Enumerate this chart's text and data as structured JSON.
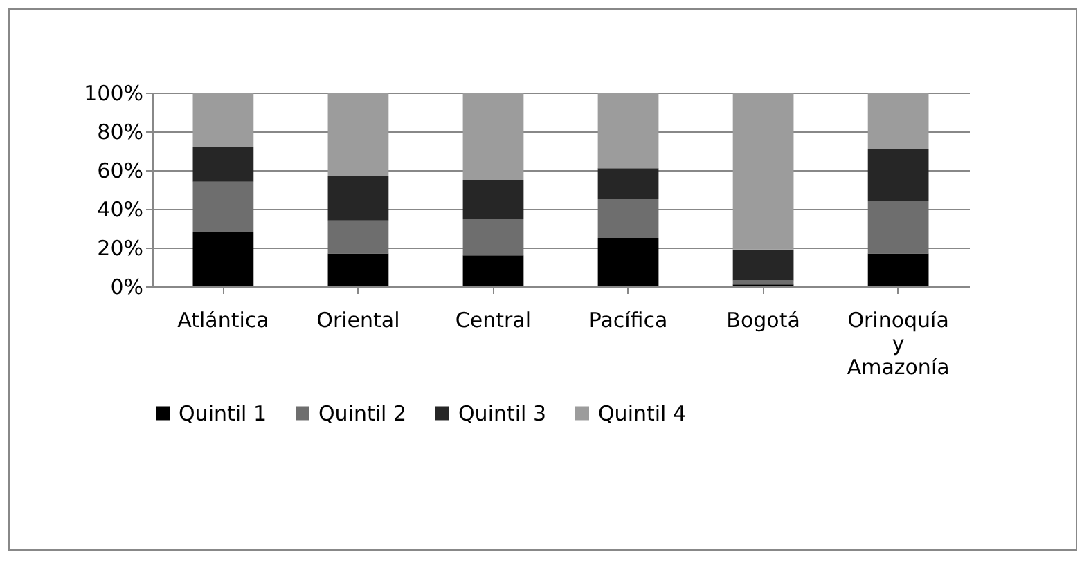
{
  "chart_data": {
    "type": "bar",
    "stacked": true,
    "categories": [
      "Atlántica",
      "Oriental",
      "Central",
      "Pacífica",
      "Bogotá",
      "Orinoquía y Amazonía"
    ],
    "series": [
      {
        "name": "Quintil 1",
        "color": "#000000",
        "values": [
          28,
          17,
          16,
          25,
          1,
          17
        ]
      },
      {
        "name": "Quintil 2",
        "color": "#6e6e6e",
        "values": [
          26,
          17,
          19,
          20,
          2,
          27
        ]
      },
      {
        "name": "Quintil 3",
        "color": "#262626",
        "values": [
          18,
          23,
          20,
          16,
          16,
          27
        ]
      },
      {
        "name": "Quintil 4",
        "color": "#9c9c9c",
        "values": [
          28,
          43,
          45,
          39,
          81,
          29
        ]
      }
    ],
    "ylim": [
      0,
      100
    ],
    "yticks": [
      {
        "value": 0,
        "label": "0%"
      },
      {
        "value": 20,
        "label": "20%"
      },
      {
        "value": 40,
        "label": "40%"
      },
      {
        "value": 60,
        "label": "60%"
      },
      {
        "value": 80,
        "label": "80%"
      },
      {
        "value": 100,
        "label": "100%"
      }
    ],
    "grid": "y",
    "legend": "bottom"
  }
}
